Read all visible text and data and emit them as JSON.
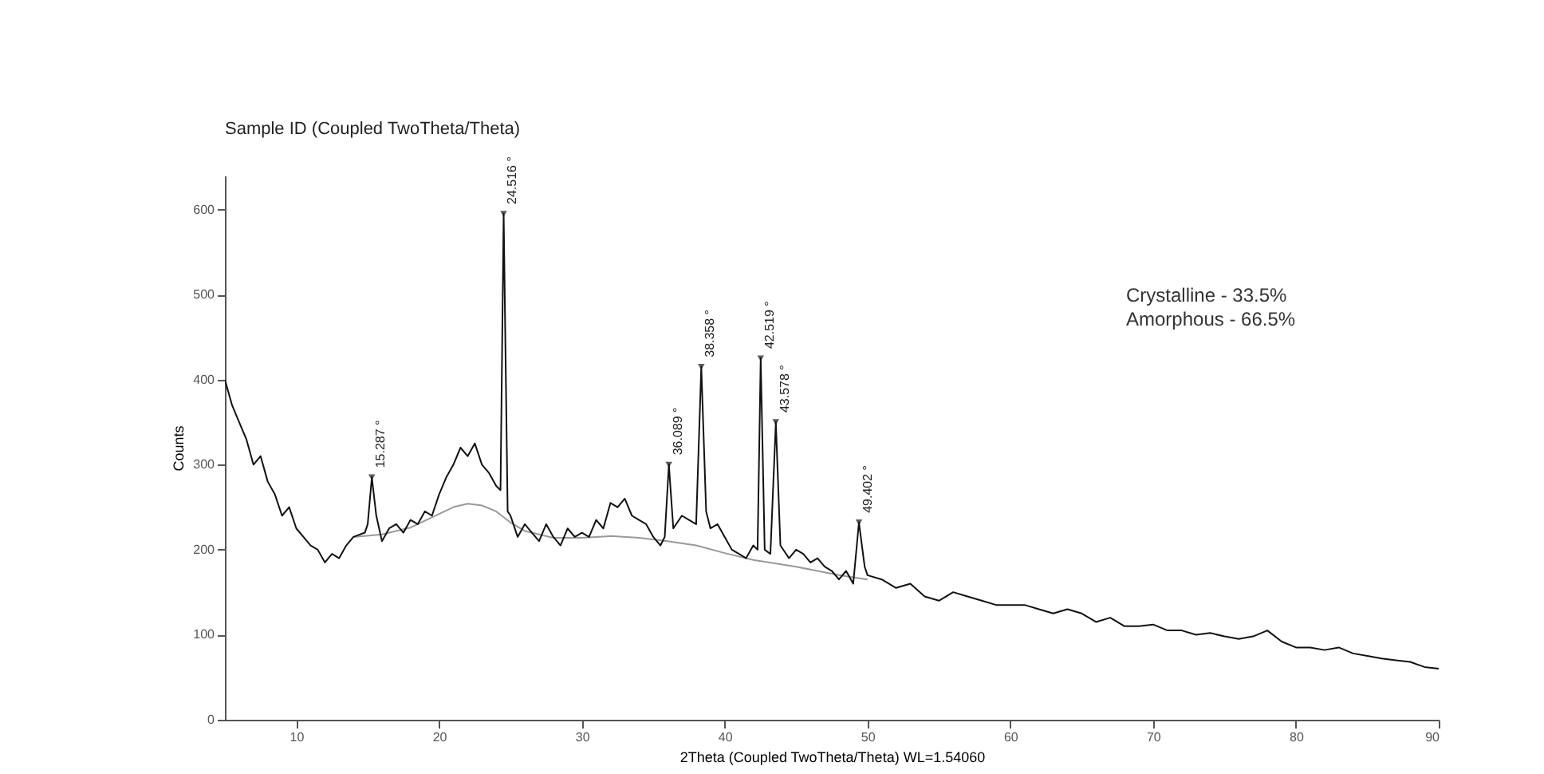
{
  "chart_data": {
    "type": "line",
    "title": "Sample ID (Coupled TwoTheta/Theta)",
    "xlabel": "2Theta (Coupled TwoTheta/Theta) WL=1.54060",
    "ylabel": "Counts",
    "xlim": [
      5,
      90
    ],
    "ylim": [
      0,
      640
    ],
    "xticks": [
      10,
      20,
      30,
      40,
      50,
      60,
      70,
      80,
      90
    ],
    "yticks": [
      0,
      100,
      200,
      300,
      400,
      500,
      600
    ],
    "grid": false,
    "marker": "none",
    "line_style": "solid",
    "series": [
      {
        "color": "#999999",
        "x": [
          14,
          16,
          18,
          20,
          21,
          22,
          23,
          24,
          25,
          26,
          28,
          30,
          32,
          34,
          36,
          38,
          40,
          42,
          45,
          48,
          50
        ],
        "values": [
          215,
          218,
          226,
          242,
          250,
          254,
          252,
          245,
          232,
          222,
          214,
          214,
          216,
          214,
          210,
          205,
          196,
          188,
          180,
          170,
          165
        ]
      },
      {
        "color": "#111111",
        "x": [
          5,
          5.5,
          6,
          6.5,
          7,
          7.5,
          8,
          8.5,
          9,
          9.5,
          10,
          10.5,
          11,
          11.5,
          12,
          12.5,
          13,
          13.5,
          14,
          14.8,
          15,
          15.29,
          15.6,
          16,
          16.5,
          17,
          17.5,
          18,
          18.5,
          19,
          19.5,
          20,
          20.5,
          21,
          21.5,
          22,
          22.5,
          23,
          23.5,
          24,
          24.3,
          24.52,
          24.8,
          25,
          25.5,
          26,
          26.5,
          27,
          27.5,
          28,
          28.5,
          29,
          29.5,
          30,
          30.5,
          31,
          31.5,
          32,
          32.5,
          33,
          33.5,
          34,
          34.5,
          35,
          35.5,
          35.8,
          36.09,
          36.4,
          37,
          37.5,
          38,
          38.36,
          38.7,
          39,
          39.5,
          40,
          40.5,
          41,
          41.5,
          42,
          42.3,
          42.52,
          42.8,
          43.2,
          43.58,
          43.9,
          44.5,
          45,
          45.5,
          46,
          46.5,
          47,
          47.5,
          48,
          48.5,
          49,
          49.4,
          49.8,
          50,
          51,
          52,
          53,
          54,
          55,
          56,
          57,
          58,
          59,
          60,
          61,
          62,
          63,
          64,
          65,
          66,
          67,
          68,
          69,
          70,
          71,
          72,
          73,
          74,
          75,
          76,
          77,
          78,
          79,
          80,
          81,
          82,
          83,
          84,
          85,
          86,
          87,
          88,
          89,
          90
        ],
        "values": [
          400,
          370,
          350,
          330,
          300,
          310,
          280,
          265,
          240,
          250,
          225,
          215,
          205,
          200,
          185,
          195,
          190,
          205,
          215,
          220,
          230,
          285,
          240,
          210,
          225,
          230,
          220,
          235,
          230,
          245,
          240,
          265,
          285,
          300,
          320,
          310,
          325,
          300,
          290,
          275,
          270,
          595,
          245,
          240,
          215,
          230,
          220,
          210,
          230,
          215,
          205,
          225,
          215,
          220,
          215,
          235,
          225,
          255,
          250,
          260,
          240,
          235,
          230,
          215,
          205,
          215,
          300,
          225,
          240,
          235,
          230,
          415,
          245,
          225,
          230,
          215,
          200,
          195,
          190,
          205,
          200,
          425,
          200,
          195,
          350,
          205,
          190,
          200,
          195,
          185,
          190,
          180,
          175,
          165,
          175,
          160,
          232,
          180,
          170,
          165,
          155,
          160,
          145,
          140,
          150,
          145,
          140,
          135,
          135,
          135,
          130,
          125,
          130,
          125,
          115,
          120,
          110,
          110,
          112,
          105,
          105,
          100,
          102,
          98,
          95,
          98,
          105,
          92,
          85,
          85,
          82,
          85,
          78,
          75,
          72,
          70,
          68,
          62,
          60
        ]
      }
    ],
    "annotations": [
      {
        "text": "15.287 °",
        "x": 15.287,
        "y": 285
      },
      {
        "text": "24.516 °",
        "x": 24.516,
        "y": 595
      },
      {
        "text": "36.089 °",
        "x": 36.089,
        "y": 300
      },
      {
        "text": "38.358 °",
        "x": 38.358,
        "y": 415
      },
      {
        "text": "42.519 °",
        "x": 42.519,
        "y": 425
      },
      {
        "text": "43.578 °",
        "x": 43.578,
        "y": 350
      },
      {
        "text": "49.402 °",
        "x": 49.402,
        "y": 232
      },
      "Crystalline - 33.5%",
      "Amorphous - 66.5%"
    ]
  }
}
